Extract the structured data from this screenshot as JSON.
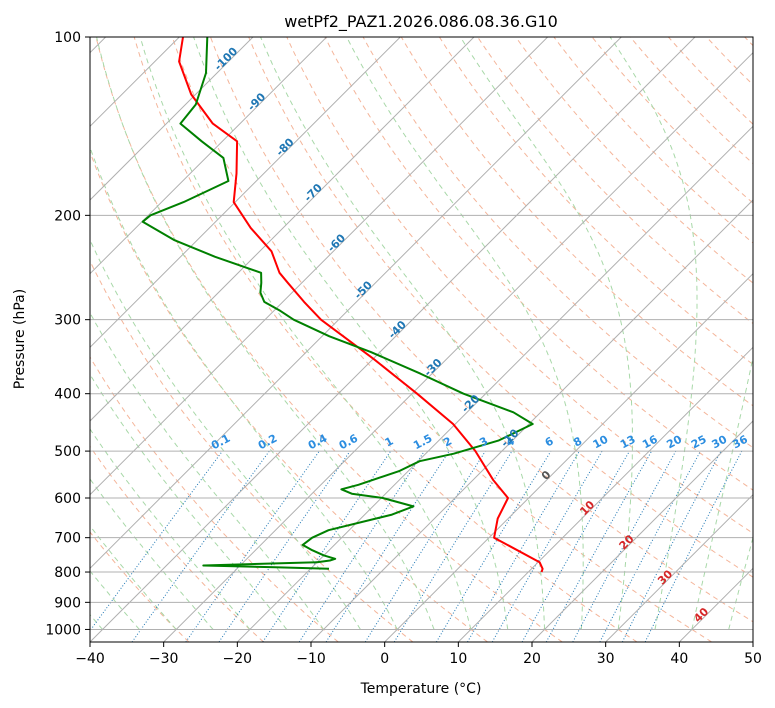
{
  "chart_data": {
    "type": "line",
    "title": "wetPf2_PAZ1.2026.086.08.36.G10",
    "xlabel": "Temperature (°C)",
    "ylabel": "Pressure (hPa)",
    "xlim": [
      -40,
      50
    ],
    "ylim": [
      1050,
      100
    ],
    "y_scale": "log",
    "grid": true,
    "x_ticks": [
      "−40",
      "−30",
      "−20",
      "−10",
      "0",
      "10",
      "20",
      "30",
      "40",
      "50"
    ],
    "x_tick_values": [
      -40,
      -30,
      -20,
      -10,
      0,
      10,
      20,
      30,
      40,
      50
    ],
    "y_ticks": [
      "100",
      "200",
      "300",
      "400",
      "500",
      "600",
      "700",
      "800",
      "900",
      "1000"
    ],
    "y_tick_values": [
      100,
      200,
      300,
      400,
      500,
      600,
      700,
      800,
      900,
      1000
    ],
    "isotherm_labels": [
      {
        "label": "-100",
        "x": -100,
        "p": 110
      },
      {
        "label": "-90",
        "x": -90,
        "p": 130
      },
      {
        "label": "-80",
        "x": -80,
        "p": 155
      },
      {
        "label": "-70",
        "x": -70,
        "p": 185
      },
      {
        "label": "-60",
        "x": -60,
        "p": 225
      },
      {
        "label": "-50",
        "x": -50,
        "p": 270
      },
      {
        "label": "-40",
        "x": -40,
        "p": 315
      },
      {
        "label": "-30",
        "x": -30,
        "p": 365
      },
      {
        "label": "-20",
        "x": -20,
        "p": 420
      },
      {
        "label": "-10",
        "x": -10,
        "p": 480
      },
      {
        "label": "0",
        "x": 0,
        "p": 555
      },
      {
        "label": "10",
        "x": 10,
        "p": 630
      },
      {
        "label": "20",
        "x": 20,
        "p": 720
      },
      {
        "label": "30",
        "x": 30,
        "p": 825
      },
      {
        "label": "40",
        "x": 40,
        "p": 955
      }
    ],
    "mixing_ratio_labels": [
      "0.1",
      "0.2",
      "0.4",
      "0.6",
      "1",
      "1.5",
      "2",
      "3",
      "4",
      "6",
      "8",
      "10",
      "13",
      "16",
      "20",
      "25",
      "30",
      "36"
    ],
    "mixing_ratio_values": [
      0.1,
      0.2,
      0.4,
      0.6,
      1,
      1.5,
      2,
      3,
      4,
      6,
      8,
      10,
      13,
      16,
      20,
      25,
      30,
      36
    ],
    "mixing_ratio_label_pressure": 500,
    "series": [
      {
        "color": "#ff0000",
        "p": [
          800,
          790,
          770,
          700,
          650,
          600,
          560,
          500,
          450,
          400,
          350,
          300,
          280,
          260,
          250,
          230,
          210,
          190,
          170,
          150,
          140,
          125,
          110,
          100
        ],
        "t": [
          11.8,
          11.5,
          10.2,
          0.7,
          -1.4,
          -2.8,
          -7.2,
          -13.6,
          -20.3,
          -29.3,
          -39.8,
          -52.4,
          -57.1,
          -61.9,
          -64.4,
          -68.4,
          -74.4,
          -80.2,
          -83.7,
          -88.0,
          -93.7,
          -100.6,
          -106.7,
          -109.5
        ]
      },
      {
        "color": "#008000",
        "p": [
          790,
          785,
          780,
          770,
          765,
          760,
          750,
          735,
          720,
          700,
          680,
          640,
          620,
          600,
          590,
          580,
          570,
          540,
          520,
          505,
          480,
          450,
          430,
          400,
          370,
          340,
          320,
          300,
          290,
          280,
          270,
          260,
          250,
          235,
          220,
          205,
          200,
          190,
          175,
          160,
          150,
          140,
          130,
          115,
          100
        ],
        "t": [
          -17.5,
          -25.0,
          -35.0,
          -20.0,
          -18.5,
          -18.0,
          -20.0,
          -22.3,
          -24.3,
          -24.0,
          -22.8,
          -16.3,
          -14.5,
          -19.8,
          -24.6,
          -26.6,
          -24.9,
          -21.2,
          -19.8,
          -16.2,
          -11.9,
          -9.5,
          -13.7,
          -23.0,
          -31.6,
          -41.3,
          -49.0,
          -56.1,
          -59.1,
          -62.5,
          -64.3,
          -65.5,
          -66.9,
          -75.3,
          -83.2,
          -89.9,
          -89.7,
          -87.0,
          -83.8,
          -87.6,
          -92.8,
          -98.1,
          -98.6,
          -101.5,
          -106.2
        ]
      }
    ]
  }
}
